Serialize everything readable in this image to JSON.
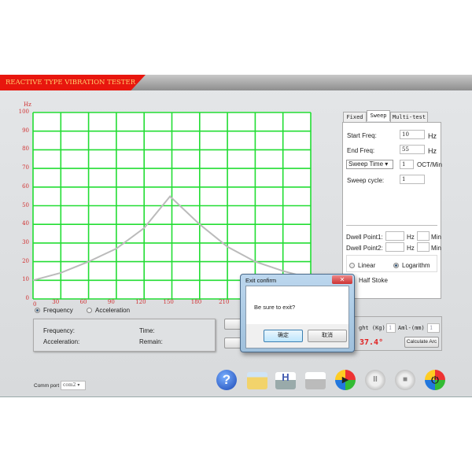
{
  "app": {
    "title": "REACTIVE TYPE VIBRATION TESTER"
  },
  "chart_data": {
    "type": "line",
    "ylabel": "Hz",
    "xlim": [
      0,
      300
    ],
    "ylim": [
      0,
      100
    ],
    "x_ticks": [
      "0",
      "30",
      "60",
      "90",
      "120",
      "150",
      "180",
      "210"
    ],
    "y_ticks": [
      "0",
      "10",
      "20",
      "30",
      "40",
      "50",
      "60",
      "70",
      "80",
      "90",
      "100"
    ],
    "grid": true,
    "grid_color": "#22dd33",
    "line_color": "#bbbbbb",
    "x": [
      0,
      30,
      60,
      90,
      120,
      148,
      180,
      210,
      240,
      270,
      300
    ],
    "y": [
      10,
      14,
      20,
      27,
      38,
      55,
      40,
      28,
      20,
      15,
      11
    ]
  },
  "mode": {
    "frequency": "Frequency",
    "acceleration": "Acceleration",
    "selected": "Frequency"
  },
  "status": {
    "frequency": "Frequency:",
    "time": "Time:",
    "acceleration": "Acceleration:",
    "remain": "Remain:"
  },
  "tabs": [
    {
      "label": "Fixed"
    },
    {
      "label": "Sweep",
      "active": true
    },
    {
      "label": "Multi-test"
    }
  ],
  "sweep": {
    "start_label": "Start Freq:",
    "start_value": "10",
    "start_unit": "Hz",
    "end_label": "End Freq:",
    "end_value": "55",
    "end_unit": "Hz",
    "mode_select": "Sweep Time",
    "rate_value": "1",
    "rate_unit": "OCT/Min",
    "cycle_label": "Sweep cycle:",
    "cycle_value": "1",
    "dwell1_label": "Dwell Point1:",
    "dwell2_label": "Dwell Point2:",
    "hz": "Hz",
    "min": "Min",
    "linear": "Linear",
    "logarithm": "Logarithm",
    "selected": "Logarithm",
    "half_stoke": "Half Stoke"
  },
  "arc": {
    "weight_label": "ght (Kg)",
    "weight_value": "1",
    "aml_label": "Aml-(mm)",
    "aml_value": "1",
    "angle": "37.4°",
    "calc_button": "Calculate Arc"
  },
  "comm": {
    "label": "Comm port",
    "value": "com2"
  },
  "toolbar": [
    "help-icon",
    "open-folder-icon",
    "save-disk-icon",
    "print-icon",
    "play-icon",
    "pause-icon",
    "stop-icon",
    "power-icon"
  ],
  "dialog": {
    "title": "Exit confirm",
    "message": "Be sure to exit?",
    "ok": "确定",
    "cancel": "取消"
  }
}
